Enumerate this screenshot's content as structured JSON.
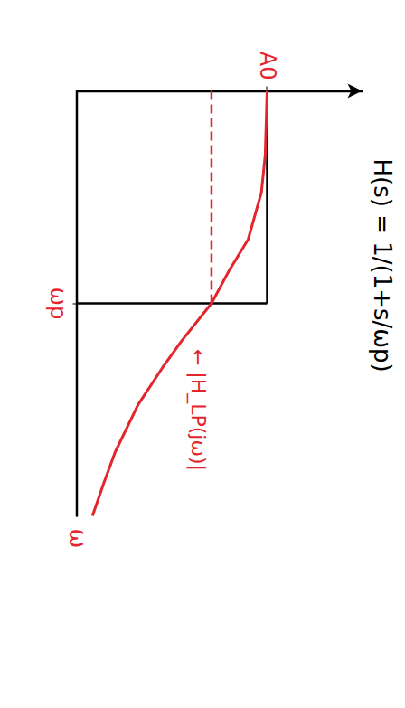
{
  "chart_data": {
    "type": "line",
    "title": "H(s) = 1/(1+s/ωp)",
    "x_label": "ω",
    "log": "x",
    "xlim": [
      0.1,
      10
    ],
    "ylim": [
      0,
      1.5
    ],
    "xticks": [
      {
        "value": 1,
        "label": "ωp"
      }
    ],
    "yticks": [
      {
        "value": 1,
        "label": "A0"
      }
    ],
    "grid": false,
    "series": [
      {
        "name": "|H_LP(jω)|",
        "color": "#e3262d",
        "line_style": "solid",
        "x": [
          0.1,
          0.2,
          0.3,
          0.5,
          0.7,
          1,
          1.5,
          2,
          3,
          5,
          7,
          10
        ],
        "values": [
          1.0,
          0.99,
          0.97,
          0.9,
          0.8,
          0.707,
          0.55,
          0.45,
          0.32,
          0.2,
          0.14,
          0.08
        ]
      },
      {
        "color": "#e3262d",
        "line_style": "dashed",
        "x": [
          0.1,
          1
        ],
        "values": [
          0.707,
          0.707
        ]
      },
      {
        "color": "#000000",
        "line_style": "solid",
        "x": [
          0.1,
          1
        ],
        "values": [
          1,
          1
        ]
      },
      {
        "color": "#000000",
        "line_style": "solid",
        "x": [
          1,
          1
        ],
        "values": [
          0,
          1
        ]
      }
    ]
  }
}
